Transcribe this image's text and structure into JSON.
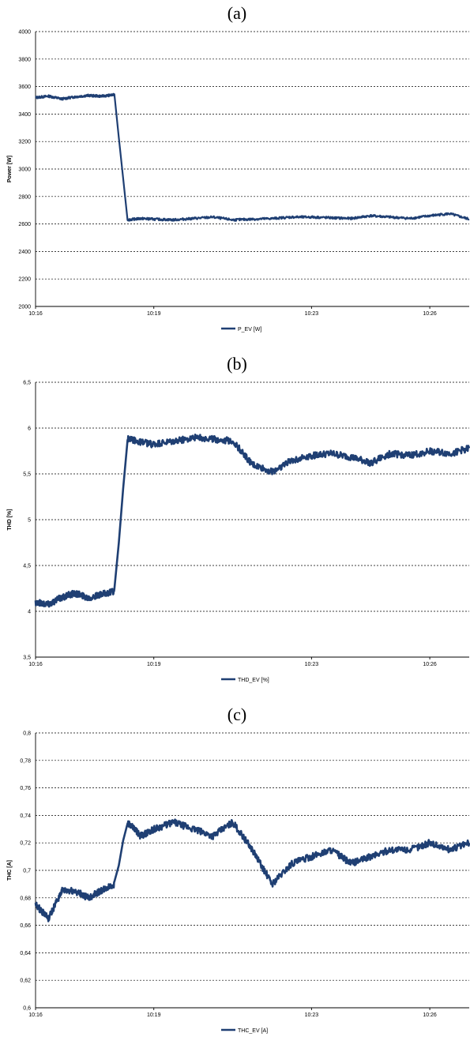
{
  "chart_data": [
    {
      "type": "line",
      "panel_label": "(a)",
      "ylabel": "Power [W]",
      "ylim": [
        2000,
        4000
      ],
      "yticks": [
        2000,
        2200,
        2400,
        2600,
        2800,
        3000,
        3200,
        3400,
        3600,
        3800,
        4000
      ],
      "ytick_labels": [
        "2000",
        "2200",
        "2400",
        "2600",
        "2800",
        "3000",
        "3200",
        "3400",
        "3600",
        "3800",
        "4000"
      ],
      "xlim": [
        "10:16",
        "10:27"
      ],
      "xtick_labels": [
        "10:16",
        "10:19",
        "10:23",
        "10:26"
      ],
      "grid": "horizontal dashed",
      "legend": "bottom-center",
      "color": "#1f3f73",
      "series": [
        {
          "name": "P_EV   [W]",
          "x": [
            "10:16:00",
            "10:16:20",
            "10:16:40",
            "10:17:00",
            "10:17:20",
            "10:17:40",
            "10:18:00",
            "10:18:20",
            "10:18:40",
            "10:19:00",
            "10:19:30",
            "10:20:00",
            "10:20:30",
            "10:21:00",
            "10:21:30",
            "10:22:00",
            "10:22:30",
            "10:23:00",
            "10:23:30",
            "10:24:00",
            "10:24:30",
            "10:25:00",
            "10:25:30",
            "10:26:00",
            "10:26:30",
            "10:27:00"
          ],
          "values": [
            3520,
            3530,
            3510,
            3525,
            3535,
            3530,
            3540,
            2630,
            2640,
            2635,
            2630,
            2640,
            2650,
            2630,
            2635,
            2640,
            2650,
            2650,
            2645,
            2640,
            2660,
            2650,
            2640,
            2660,
            2675,
            2635
          ]
        }
      ]
    },
    {
      "type": "line",
      "panel_label": "(b)",
      "ylabel": "THD [%]",
      "ylim": [
        3.5,
        6.5
      ],
      "yticks": [
        3.5,
        4,
        4.5,
        5,
        5.5,
        6,
        6.5
      ],
      "ytick_labels": [
        "3,5",
        "4",
        "4,5",
        "5",
        "5,5",
        "6",
        "6,5"
      ],
      "xlim": [
        "10:16",
        "10:27"
      ],
      "xtick_labels": [
        "10:16",
        "10:19",
        "10:23",
        "10:26"
      ],
      "grid": "horizontal dashed",
      "legend": "bottom-center",
      "color": "#1f3f73",
      "series": [
        {
          "name": "THD_EV   [%]",
          "x": [
            "10:16:00",
            "10:16:20",
            "10:16:40",
            "10:17:00",
            "10:17:20",
            "10:17:40",
            "10:18:00",
            "10:18:20",
            "10:18:40",
            "10:19:00",
            "10:19:30",
            "10:20:00",
            "10:20:30",
            "10:21:00",
            "10:21:30",
            "10:22:00",
            "10:22:30",
            "10:23:00",
            "10:23:30",
            "10:24:00",
            "10:24:30",
            "10:25:00",
            "10:25:30",
            "10:26:00",
            "10:26:30",
            "10:27:00"
          ],
          "values": [
            4.1,
            4.08,
            4.15,
            4.2,
            4.15,
            4.18,
            4.22,
            5.88,
            5.85,
            5.82,
            5.85,
            5.9,
            5.88,
            5.86,
            5.6,
            5.52,
            5.65,
            5.7,
            5.72,
            5.68,
            5.62,
            5.72,
            5.7,
            5.75,
            5.72,
            5.78
          ]
        }
      ]
    },
    {
      "type": "line",
      "panel_label": "(c)",
      "ylabel": "THC [A]",
      "ylim": [
        0.6,
        0.8
      ],
      "yticks": [
        0.6,
        0.62,
        0.64,
        0.66,
        0.68,
        0.7,
        0.72,
        0.74,
        0.76,
        0.78,
        0.8
      ],
      "ytick_labels": [
        "0,6",
        "0,62",
        "0,64",
        "0,66",
        "0,68",
        "0,7",
        "0,72",
        "0,74",
        "0,76",
        "0,78",
        "0,8"
      ],
      "xlim": [
        "10:16",
        "10:27"
      ],
      "xtick_labels": [
        "10:16",
        "10:19",
        "10:23",
        "10:26"
      ],
      "grid": "horizontal dashed",
      "legend": "bottom-center",
      "color": "#1f3f73",
      "series": [
        {
          "name": "THC_EV   [A]",
          "x": [
            "10:16:00",
            "10:16:20",
            "10:16:40",
            "10:17:00",
            "10:17:20",
            "10:17:40",
            "10:18:00",
            "10:18:20",
            "10:18:40",
            "10:19:00",
            "10:19:30",
            "10:20:00",
            "10:20:30",
            "10:21:00",
            "10:21:30",
            "10:22:00",
            "10:22:30",
            "10:23:00",
            "10:23:30",
            "10:24:00",
            "10:24:30",
            "10:25:00",
            "10:25:30",
            "10:26:00",
            "10:26:30",
            "10:27:00"
          ],
          "values": [
            0.675,
            0.665,
            0.685,
            0.685,
            0.68,
            0.685,
            0.69,
            0.735,
            0.725,
            0.73,
            0.735,
            0.73,
            0.725,
            0.735,
            0.715,
            0.69,
            0.705,
            0.71,
            0.715,
            0.705,
            0.71,
            0.715,
            0.715,
            0.72,
            0.715,
            0.72
          ]
        }
      ]
    }
  ]
}
